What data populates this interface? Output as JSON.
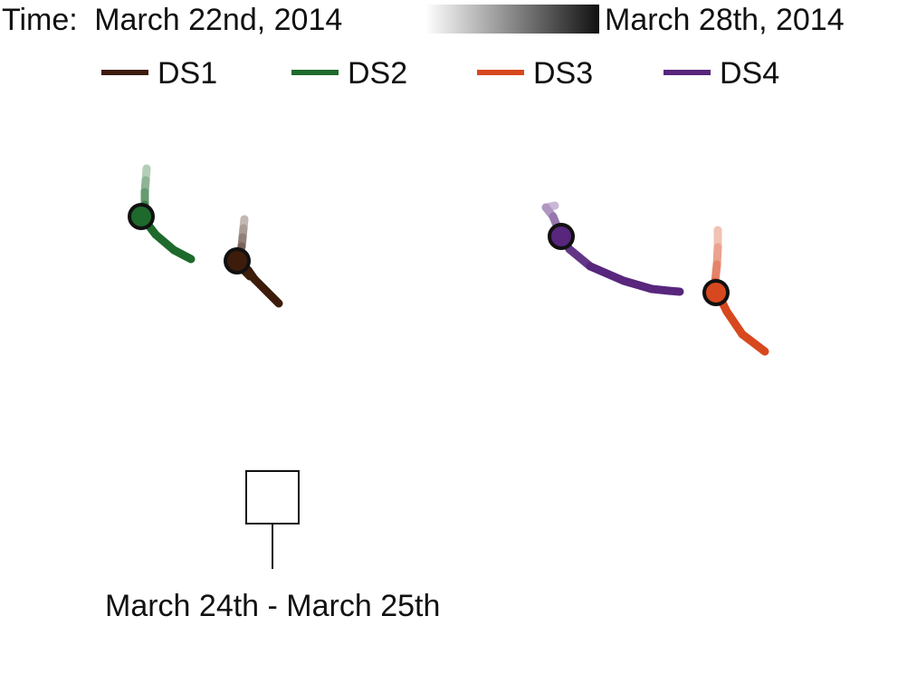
{
  "chart_data": {
    "type": "line",
    "time_legend": {
      "prefix": "Time:",
      "start_label": "March 22nd, 2014",
      "end_label": "March 28th, 2014",
      "gradient_from": "#ffffff",
      "gradient_to": "#111111"
    },
    "series": [
      {
        "name": "DS1",
        "color": "#3d1c0c",
        "points": [
          [
            0.0,
            0.0
          ],
          [
            -0.1,
            -1.0
          ],
          [
            -0.2,
            -2.0
          ],
          [
            -0.3,
            -3.0
          ],
          [
            -0.6,
            -4.0
          ],
          [
            -0.8,
            -4.6
          ],
          [
            -0.4,
            -5.3
          ],
          [
            0.6,
            -6.3
          ],
          [
            0.4,
            -5.6
          ],
          [
            1.1,
            -6.6
          ],
          [
            2.5,
            -8.0
          ],
          [
            3.8,
            -9.3
          ]
        ],
        "marker_index": 5
      },
      {
        "name": "DS2",
        "color": "#1e6a2c",
        "points": [
          [
            -10.8,
            5.6
          ],
          [
            -10.9,
            4.3
          ],
          [
            -11.0,
            3.0
          ],
          [
            -11.0,
            1.6
          ],
          [
            -11.4,
            0.3
          ],
          [
            -10.8,
            -0.4
          ],
          [
            -9.8,
            -1.7
          ],
          [
            -7.8,
            -3.4
          ],
          [
            -5.9,
            -4.4
          ]
        ],
        "marker_index": 4
      },
      {
        "name": "DS3",
        "color": "#d8481f",
        "points": [
          [
            52.3,
            -1.2
          ],
          [
            52.3,
            -3.1
          ],
          [
            52.2,
            -5.0
          ],
          [
            52.0,
            -6.9
          ],
          [
            52.1,
            -8.1
          ],
          [
            52.5,
            -8.6
          ],
          [
            53.3,
            -10.2
          ],
          [
            55.0,
            -12.7
          ],
          [
            57.5,
            -14.6
          ]
        ],
        "marker_index": 4
      },
      {
        "name": "DS4",
        "color": "#58267d",
        "points": [
          [
            34.3,
            1.5
          ],
          [
            33.3,
            1.3
          ],
          [
            34.1,
            0.3
          ],
          [
            35.0,
            -1.9
          ],
          [
            35.9,
            -3.3
          ],
          [
            38.2,
            -5.2
          ],
          [
            41.9,
            -6.8
          ],
          [
            45.0,
            -7.7
          ],
          [
            46.9,
            -7.9
          ],
          [
            48.1,
            -8.0
          ]
        ],
        "marker_index": 3
      }
    ],
    "annotation": {
      "text": "March 24th - March 25th",
      "series": "DS1"
    }
  }
}
